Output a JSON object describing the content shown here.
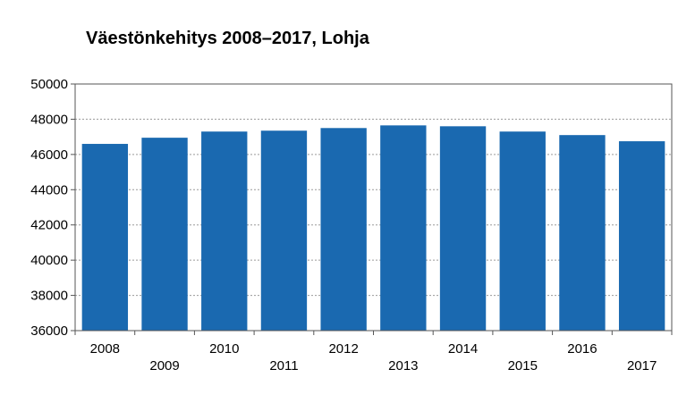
{
  "chart_data": {
    "type": "bar",
    "title": "Väestönkehitys 2008–2017, Lohja",
    "xlabel": "",
    "ylabel": "",
    "categories": [
      "2008",
      "2009",
      "2010",
      "2011",
      "2012",
      "2013",
      "2014",
      "2015",
      "2016",
      "2017"
    ],
    "values": [
      46600,
      46950,
      47300,
      47350,
      47500,
      47650,
      47600,
      47300,
      47100,
      46750
    ],
    "ylim": [
      36000,
      50000
    ],
    "yticks": [
      "36000",
      "38000",
      "40000",
      "42000",
      "44000",
      "46000",
      "48000",
      "50000"
    ],
    "grid": true,
    "legend": "none",
    "bar_color": "#1a69b0"
  }
}
